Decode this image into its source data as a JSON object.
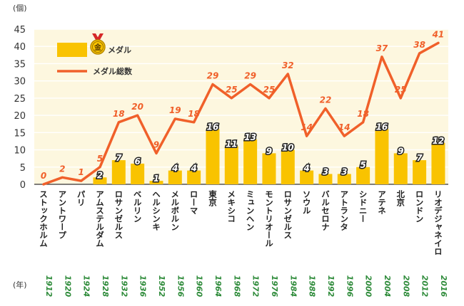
{
  "chart_data": {
    "type": "bar+line",
    "y_unit": "(個)",
    "x_unit": "(年)",
    "ylim": [
      0,
      45
    ],
    "yticks": [
      0,
      5,
      10,
      15,
      20,
      25,
      30,
      35,
      40,
      45
    ],
    "categories": [
      "ストックホルム",
      "アントワープ",
      "パリ",
      "アムステルダム",
      "ロサンゼルス",
      "ベルリン",
      "ヘルシンキ",
      "メルボルン",
      "ローマ",
      "東京",
      "メキシコ",
      "ミュンヘン",
      "モントリオール",
      "ロサンゼルス",
      "ソウル",
      "バルセロナ",
      "アトランタ",
      "シドニー",
      "アテネ",
      "北京",
      "ロンドン",
      "リオデジャネイロ"
    ],
    "years": [
      "1912",
      "1920",
      "1924",
      "1928",
      "1932",
      "1936",
      "1952",
      "1956",
      "1960",
      "1964",
      "1968",
      "1972",
      "1976",
      "1984",
      "1988",
      "1992",
      "1996",
      "2000",
      "2004",
      "2008",
      "2012",
      "2016"
    ],
    "series": [
      {
        "name": "金メダル",
        "type": "bar",
        "color": "#f9c300",
        "values": [
          null,
          null,
          null,
          2,
          7,
          6,
          1,
          4,
          4,
          16,
          11,
          13,
          9,
          10,
          4,
          3,
          3,
          5,
          16,
          9,
          7,
          12
        ]
      },
      {
        "name": "メダル総数",
        "type": "line",
        "color": "#f0602a",
        "values": [
          0,
          2,
          1,
          5,
          18,
          20,
          9,
          19,
          18,
          29,
          25,
          29,
          25,
          32,
          14,
          22,
          14,
          18,
          37,
          25,
          38,
          41
        ]
      }
    ],
    "legend": {
      "position": "top-left",
      "badge": "金",
      "gold_text": "メダル",
      "total_text": "メダル総数"
    },
    "colors": {
      "plot_bg": "#fdf7df",
      "bar": "#f9c300",
      "line": "#f0602a",
      "year": "#2e8b3a",
      "badge_ribbon": "#d62828"
    }
  }
}
